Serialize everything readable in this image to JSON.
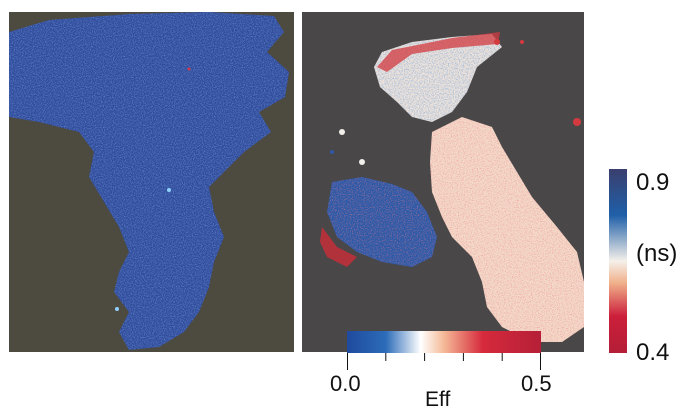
{
  "lifetime_colorbar": {
    "max_label": "0.9",
    "unit_label": "(ns)",
    "min_label": "0.4",
    "colors": [
      "#3a3f6e",
      "#1f5fa8",
      "#f4f0ea",
      "#f0b08a",
      "#cc1f3b",
      "#b41e37"
    ]
  },
  "efficiency_colorbar": {
    "min_label": "0.0",
    "max_label": "0.5",
    "title": "Eff",
    "colors": [
      "#1f4a9e",
      "#2c6cb8",
      "#ffffff",
      "#f5b997",
      "#d62a3c",
      "#b51f37"
    ]
  },
  "images": {
    "left_background": "#4d4a40",
    "right_background": "#4a4748",
    "foreground_blue": "#2e4a9a"
  }
}
